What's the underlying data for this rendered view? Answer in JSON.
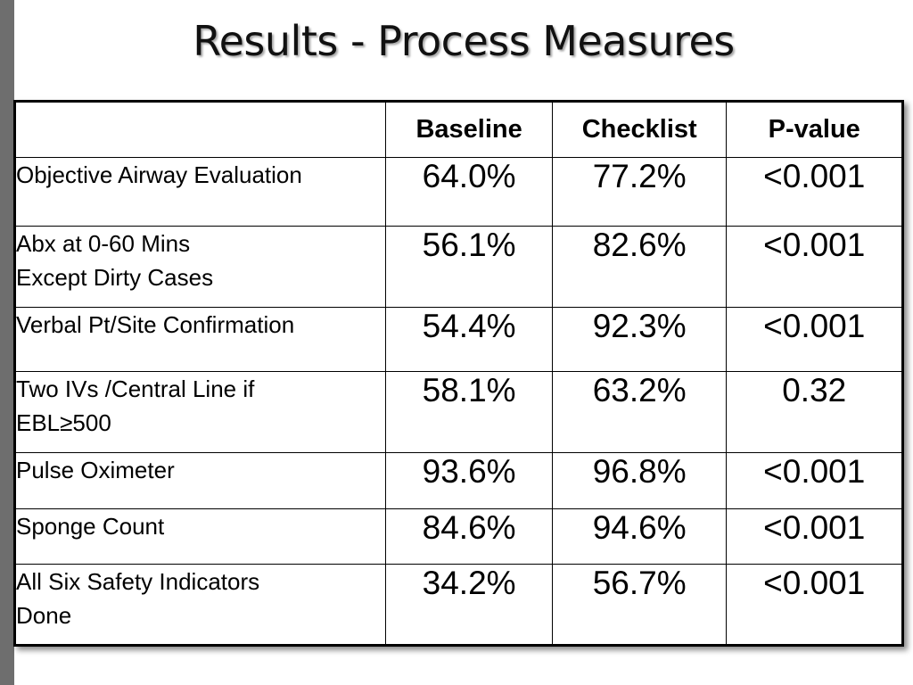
{
  "title": "Results - Process Measures",
  "table": {
    "headers": [
      "",
      "Baseline",
      "Checklist",
      "P-value"
    ],
    "rows": [
      {
        "label_line1": "Objective Airway Evaluation",
        "label_line2": "",
        "baseline": "64.0%",
        "checklist": "77.2%",
        "p_value": "<0.001"
      },
      {
        "label_line1": "Abx at 0-60 Mins",
        "label_line2": "Except Dirty Cases",
        "baseline": "56.1%",
        "checklist": "82.6%",
        "p_value": "<0.001"
      },
      {
        "label_line1": "Verbal Pt/Site Confirmation",
        "label_line2": "",
        "baseline": "54.4%",
        "checklist": "92.3%",
        "p_value": "<0.001"
      },
      {
        "label_line1": "Two IVs /Central Line if",
        "label_line2": "EBL≥500",
        "baseline": "58.1%",
        "checklist": "63.2%",
        "p_value": "0.32"
      },
      {
        "label_line1": "Pulse Oximeter",
        "label_line2": "",
        "baseline": "93.6%",
        "checklist": "96.8%",
        "p_value": "<0.001"
      },
      {
        "label_line1": "Sponge Count",
        "label_line2": "",
        "baseline": "84.6%",
        "checklist": "94.6%",
        "p_value": "<0.001"
      },
      {
        "label_line1": "All Six Safety Indicators",
        "label_line2": "Done",
        "baseline": "34.2%",
        "checklist": "56.7%",
        "p_value": "<0.001"
      }
    ]
  },
  "colors": {
    "left_bar": "#6e6e6e",
    "text": "#000000",
    "background": "#ffffff"
  }
}
